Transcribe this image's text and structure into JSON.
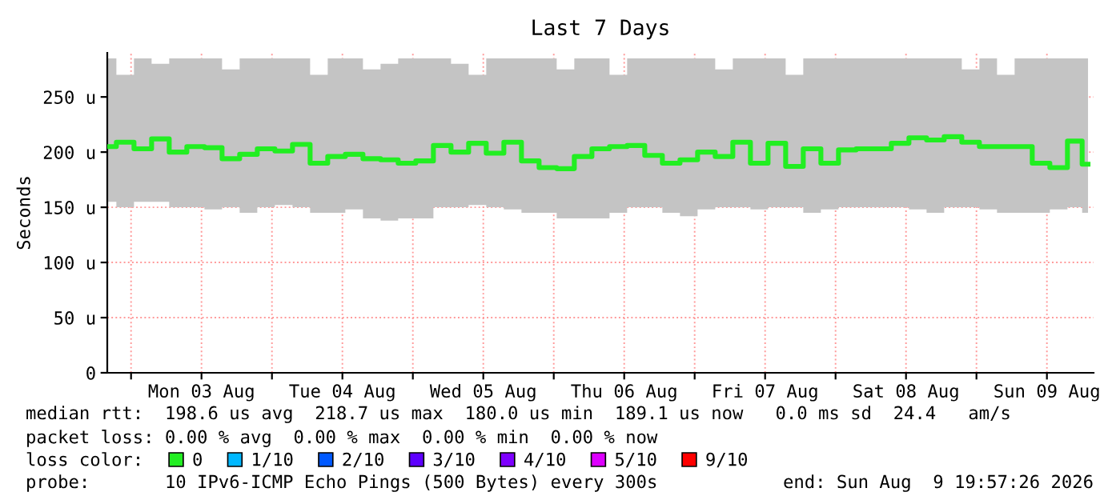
{
  "chart_data": {
    "type": "step",
    "title": "Last 7 Days",
    "ylabel": "Seconds",
    "x": [
      "2026-08-02T20:00",
      "2026-08-02T23:00",
      "2026-08-03T02:00",
      "2026-08-03T05:00",
      "2026-08-03T08:00",
      "2026-08-03T11:00",
      "2026-08-03T14:00",
      "2026-08-03T17:00",
      "2026-08-03T20:00",
      "2026-08-03T23:00",
      "2026-08-04T02:00",
      "2026-08-04T05:00",
      "2026-08-04T08:00",
      "2026-08-04T11:00",
      "2026-08-04T14:00",
      "2026-08-04T17:00",
      "2026-08-04T20:00",
      "2026-08-04T23:00",
      "2026-08-05T02:00",
      "2026-08-05T05:00",
      "2026-08-05T08:00",
      "2026-08-05T11:00",
      "2026-08-05T14:00",
      "2026-08-05T17:00",
      "2026-08-05T20:00",
      "2026-08-05T23:00",
      "2026-08-06T02:00",
      "2026-08-06T05:00",
      "2026-08-06T08:00",
      "2026-08-06T11:00",
      "2026-08-06T14:00",
      "2026-08-06T17:00",
      "2026-08-06T20:00",
      "2026-08-06T23:00",
      "2026-08-07T02:00",
      "2026-08-07T05:00",
      "2026-08-07T08:00",
      "2026-08-07T11:00",
      "2026-08-07T14:00",
      "2026-08-07T17:00",
      "2026-08-07T20:00",
      "2026-08-07T23:00",
      "2026-08-08T02:00",
      "2026-08-08T05:00",
      "2026-08-08T08:00",
      "2026-08-08T11:00",
      "2026-08-08T14:00",
      "2026-08-08T17:00",
      "2026-08-08T20:00",
      "2026-08-08T23:00",
      "2026-08-09T02:00",
      "2026-08-09T05:00",
      "2026-08-09T08:00",
      "2026-08-09T11:00",
      "2026-08-09T14:00",
      "2026-08-09T17:00",
      "2026-08-09T19:00"
    ],
    "series": [
      {
        "name": "0",
        "color": "#22ee22",
        "values": [
          205,
          209,
          203,
          212,
          200,
          205,
          204,
          194,
          198,
          203,
          201,
          207,
          190,
          196,
          198,
          194,
          193,
          190,
          192,
          206,
          200,
          208,
          199,
          209,
          192,
          186,
          185,
          196,
          203,
          205,
          206,
          197,
          190,
          193,
          200,
          196,
          209,
          190,
          208,
          187,
          203,
          190,
          202,
          203,
          203,
          208,
          213,
          211,
          214,
          209,
          205,
          205,
          205,
          190,
          186,
          210,
          189
        ],
        "lower": [
          155,
          150,
          155,
          155,
          150,
          150,
          148,
          150,
          145,
          150,
          152,
          150,
          145,
          145,
          148,
          140,
          138,
          140,
          140,
          150,
          150,
          152,
          150,
          148,
          145,
          145,
          140,
          140,
          140,
          145,
          150,
          150,
          145,
          142,
          148,
          150,
          150,
          148,
          150,
          150,
          145,
          148,
          150,
          150,
          150,
          150,
          148,
          145,
          150,
          150,
          148,
          145,
          145,
          145,
          148,
          150,
          145
        ],
        "upper": [
          285,
          270,
          285,
          280,
          285,
          285,
          285,
          275,
          285,
          285,
          285,
          285,
          270,
          285,
          285,
          275,
          280,
          285,
          285,
          285,
          280,
          270,
          285,
          285,
          285,
          285,
          275,
          285,
          285,
          270,
          285,
          285,
          285,
          285,
          285,
          275,
          285,
          285,
          285,
          270,
          285,
          285,
          285,
          285,
          285,
          285,
          285,
          285,
          285,
          275,
          285,
          270,
          285,
          285,
          285,
          285,
          285
        ]
      },
      {
        "name": "1/10",
        "color": "#00b8ff",
        "values": [
          null,
          null,
          null,
          null,
          null,
          null,
          null,
          null,
          null,
          null,
          null,
          null,
          null,
          null,
          null,
          null,
          null,
          null,
          null,
          null,
          null,
          null,
          null,
          null,
          null,
          null,
          null,
          null,
          null,
          null,
          null,
          null,
          null,
          null,
          null,
          null,
          null,
          null,
          null,
          null,
          null,
          null,
          null,
          null,
          null,
          null,
          null,
          null,
          null,
          null,
          null,
          null,
          null,
          null,
          null,
          null,
          null
        ]
      },
      {
        "name": "2/10",
        "color": "#0059ff",
        "values": [
          null,
          null,
          null,
          null,
          null,
          null,
          null,
          null,
          null,
          null,
          null,
          null,
          null,
          null,
          null,
          null,
          null,
          null,
          null,
          null,
          null,
          null,
          null,
          null,
          null,
          null,
          null,
          null,
          null,
          null,
          null,
          null,
          null,
          null,
          null,
          null,
          null,
          null,
          null,
          null,
          null,
          null,
          null,
          null,
          null,
          null,
          null,
          null,
          null,
          null,
          null,
          null,
          null,
          null,
          null,
          null,
          null
        ]
      },
      {
        "name": "3/10",
        "color": "#5e00ff",
        "values": [
          null,
          null,
          null,
          null,
          null,
          null,
          null,
          null,
          null,
          null,
          null,
          null,
          null,
          null,
          null,
          null,
          null,
          null,
          null,
          null,
          null,
          null,
          null,
          null,
          null,
          null,
          null,
          null,
          null,
          null,
          null,
          null,
          null,
          null,
          null,
          null,
          null,
          null,
          null,
          null,
          null,
          null,
          null,
          null,
          null,
          null,
          null,
          null,
          null,
          null,
          null,
          null,
          null,
          null,
          null,
          null,
          null
        ]
      },
      {
        "name": "4/10",
        "color": "#7e00ff",
        "values": [
          null,
          null,
          null,
          null,
          null,
          null,
          null,
          null,
          null,
          null,
          null,
          null,
          null,
          null,
          null,
          null,
          null,
          null,
          null,
          null,
          null,
          null,
          null,
          null,
          null,
          null,
          null,
          null,
          null,
          null,
          null,
          null,
          null,
          null,
          null,
          null,
          null,
          null,
          null,
          null,
          null,
          null,
          null,
          null,
          null,
          null,
          null,
          null,
          null,
          null,
          null,
          null,
          null,
          null,
          null,
          null,
          null
        ]
      },
      {
        "name": "5/10",
        "color": "#dd00ff",
        "values": [
          null,
          null,
          null,
          null,
          null,
          null,
          null,
          null,
          null,
          null,
          null,
          null,
          null,
          null,
          null,
          null,
          null,
          null,
          null,
          null,
          null,
          null,
          null,
          null,
          null,
          null,
          null,
          null,
          null,
          null,
          null,
          null,
          null,
          null,
          null,
          null,
          null,
          null,
          null,
          null,
          null,
          null,
          null,
          null,
          null,
          null,
          null,
          null,
          null,
          null,
          null,
          null,
          null,
          null,
          null,
          null,
          null
        ]
      },
      {
        "name": "9/10",
        "color": "#ff0000",
        "values": [
          null,
          null,
          null,
          null,
          null,
          null,
          null,
          null,
          null,
          null,
          null,
          null,
          null,
          null,
          null,
          null,
          null,
          null,
          null,
          null,
          null,
          null,
          null,
          null,
          null,
          null,
          null,
          null,
          null,
          null,
          null,
          null,
          null,
          null,
          null,
          null,
          null,
          null,
          null,
          null,
          null,
          null,
          null,
          null,
          null,
          null,
          null,
          null,
          null,
          null,
          null,
          null,
          null,
          null,
          null,
          null,
          null
        ]
      }
    ],
    "xlim": [
      "2026-08-02T19:57",
      "2026-08-09T19:57"
    ],
    "xticks": [
      {
        "value": "2026-08-03T00:00",
        "label": null
      },
      {
        "value": "2026-08-03T12:00",
        "label": "Mon 03 Aug"
      },
      {
        "value": "2026-08-04T00:00",
        "label": null
      },
      {
        "value": "2026-08-04T12:00",
        "label": "Tue 04 Aug"
      },
      {
        "value": "2026-08-05T00:00",
        "label": null
      },
      {
        "value": "2026-08-05T12:00",
        "label": "Wed 05 Aug"
      },
      {
        "value": "2026-08-06T00:00",
        "label": null
      },
      {
        "value": "2026-08-06T12:00",
        "label": "Thu 06 Aug"
      },
      {
        "value": "2026-08-07T00:00",
        "label": null
      },
      {
        "value": "2026-08-07T12:00",
        "label": "Fri 07 Aug"
      },
      {
        "value": "2026-08-08T00:00",
        "label": null
      },
      {
        "value": "2026-08-08T12:00",
        "label": "Sat 08 Aug"
      },
      {
        "value": "2026-08-09T00:00",
        "label": null
      },
      {
        "value": "2026-08-09T12:00",
        "label": "Sun 09 Aug"
      }
    ],
    "ylim": [
      0,
      290
    ],
    "yticks": [
      0,
      {
        "value": 50,
        "label": "50 u"
      },
      {
        "value": 100,
        "label": "100 u"
      },
      {
        "value": 150,
        "label": "150 u"
      },
      {
        "value": 200,
        "label": "200 u"
      },
      {
        "value": 250,
        "label": "250 u"
      }
    ],
    "grid": true,
    "legend": "bottom",
    "legend_title": "loss color:",
    "annotations": [
      "median rtt:  198.6 us avg  218.7 us max  180.0 us min  189.1 us now   0.0 ms sd  24.4   am/s",
      "packet loss: 0.00 % avg  0.00 % max  0.00 % min  0.00 % now",
      "probe:       10 IPv6-ICMP Echo Pings (500 Bytes) every 300s",
      "end: Sun Aug  9 19:57:26 2026"
    ]
  }
}
